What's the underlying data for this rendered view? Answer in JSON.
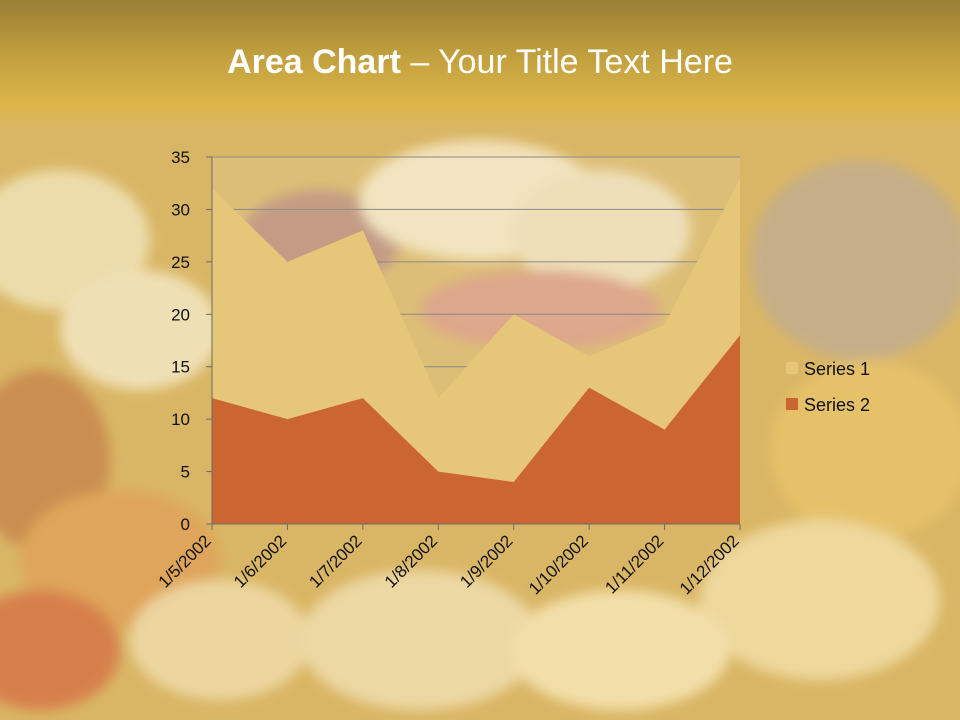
{
  "slide": {
    "title_bold": "Area Chart",
    "title_rest": " – Your Title Text Here"
  },
  "colors": {
    "series1": "#e6c679",
    "series2": "#cc6630",
    "grid": "#8a8a8a"
  },
  "chart_data": {
    "type": "area",
    "title": "",
    "xlabel": "",
    "ylabel": "",
    "categories": [
      "1/5/2002",
      "1/6/2002",
      "1/7/2002",
      "1/8/2002",
      "1/9/2002",
      "1/10/2002",
      "1/11/2002",
      "1/12/2002"
    ],
    "series": [
      {
        "name": "Series 1",
        "values": [
          32,
          25,
          28,
          12,
          20,
          16,
          19,
          33
        ]
      },
      {
        "name": "Series 2",
        "values": [
          12,
          10,
          12,
          5,
          4,
          13,
          9,
          18
        ]
      }
    ],
    "ylim": [
      0,
      35
    ],
    "yticks": [
      0,
      5,
      10,
      15,
      20,
      25,
      30,
      35
    ],
    "grid": true,
    "legend_position": "right"
  }
}
